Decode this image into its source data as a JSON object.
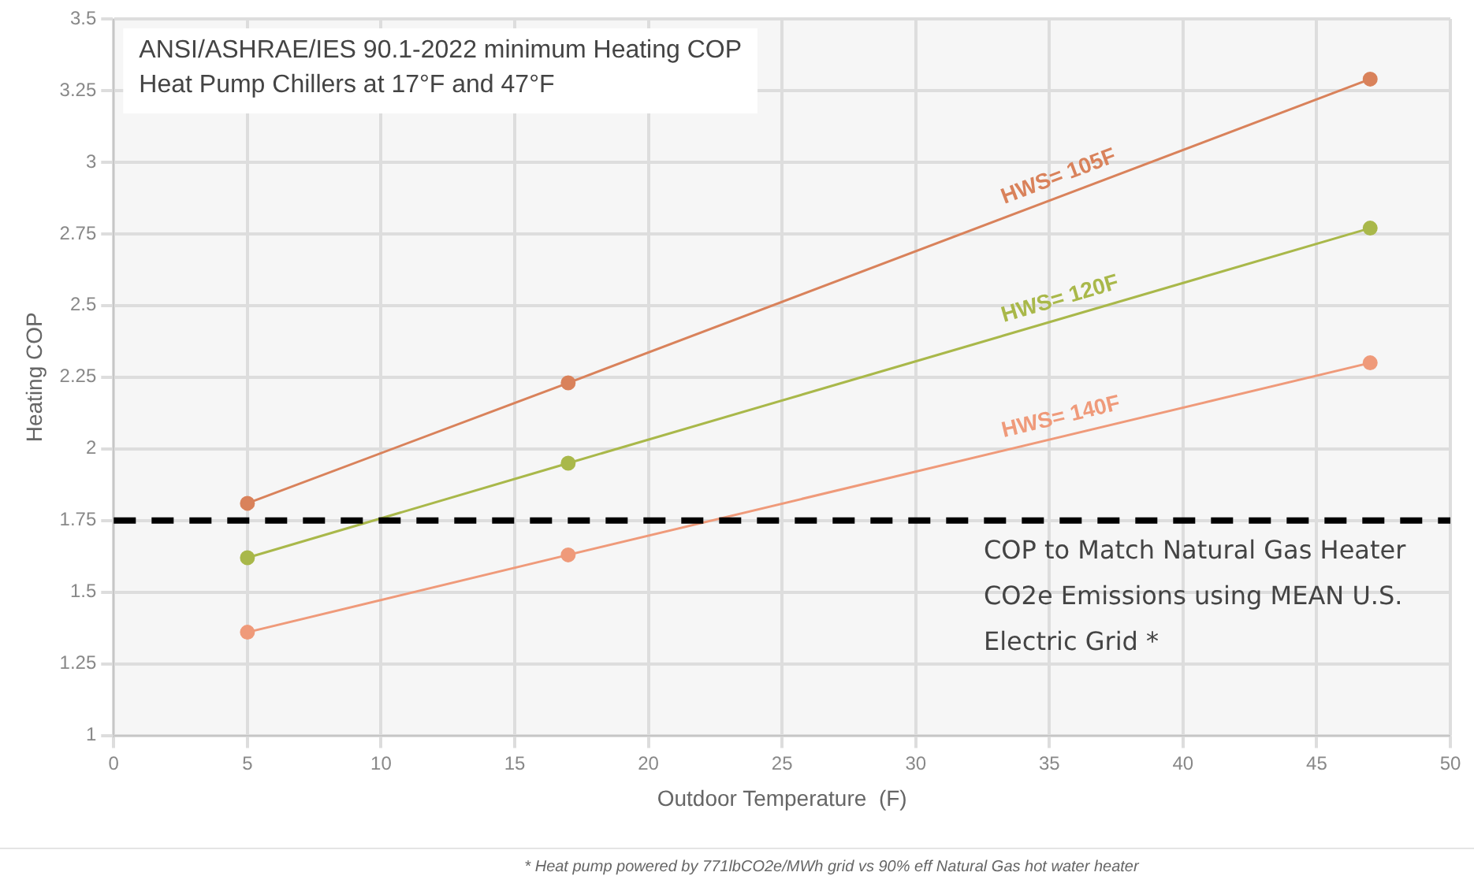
{
  "chart_data": {
    "type": "line",
    "title": "ANSI/ASHRAE/IES 90.1-2022 minimum Heating COP\nHeat Pump Chillers at 17°F and 47°F",
    "xlabel": "Outdoor Temperature  (F)",
    "ylabel": "Heating COP",
    "x": [
      5,
      17,
      47
    ],
    "series": [
      {
        "name": "HWS= 105F",
        "color": "#d9825b",
        "values": [
          1.81,
          2.23,
          3.29
        ]
      },
      {
        "name": "HWS= 120F",
        "color": "#a9b84a",
        "values": [
          1.62,
          1.95,
          2.77
        ]
      },
      {
        "name": "HWS= 140F",
        "color": "#ef9a7a",
        "values": [
          1.36,
          1.63,
          2.3
        ]
      }
    ],
    "xlim": [
      0,
      50
    ],
    "xticks": [
      0,
      5,
      10,
      15,
      20,
      25,
      30,
      35,
      40,
      45,
      50
    ],
    "ylim": [
      1,
      3.5
    ],
    "yticks": [
      1,
      1.25,
      1.5,
      1.75,
      2,
      2.25,
      2.5,
      2.75,
      3,
      3.25,
      3.5
    ],
    "ref_lines": [
      {
        "axis": "y",
        "value": 1.75,
        "label": "COP to Match Natural Gas Heater CO2e Emissions using MEAN U.S. Electric Grid *",
        "color": "#000000",
        "line_style": "dashed"
      }
    ],
    "annotations": [
      "* Heat pump powered by 771lbCO2e/MWh grid vs 90% eff Natural Gas hot water heater"
    ],
    "grid": true,
    "legend": false,
    "marker": "circle",
    "line_style": "solid"
  }
}
